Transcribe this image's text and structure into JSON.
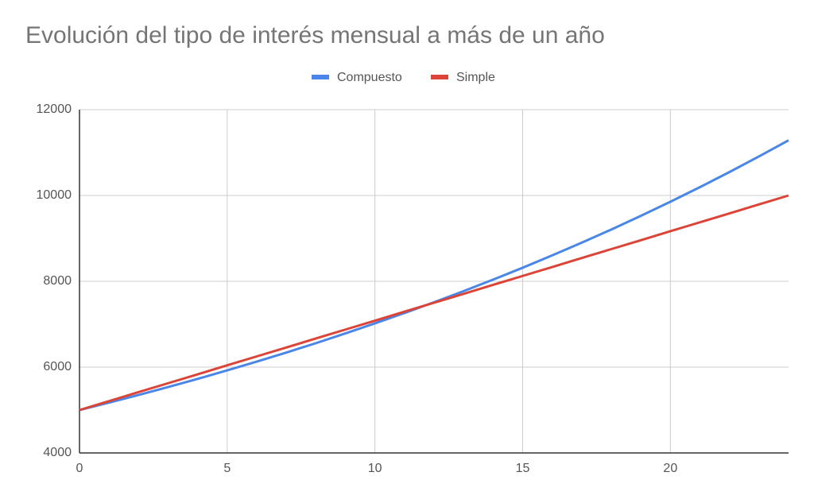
{
  "chart_data": {
    "type": "line",
    "title": "Evolución del tipo de interés mensual a más de un año",
    "x": [
      0,
      1,
      2,
      3,
      4,
      5,
      6,
      7,
      8,
      9,
      10,
      11,
      12,
      13,
      14,
      15,
      16,
      17,
      18,
      19,
      20,
      21,
      22,
      23,
      24
    ],
    "series": [
      {
        "name": "Compuesto",
        "color": "#4a86e8",
        "values": [
          5000,
          5173,
          5351,
          5535,
          5726,
          5924,
          6128,
          6340,
          6558,
          6785,
          7019,
          7261,
          7512,
          7771,
          8039,
          8316,
          8604,
          8900,
          9207,
          9525,
          9854,
          10194,
          10546,
          10910,
          11286
        ]
      },
      {
        "name": "Simple",
        "color": "#db4437",
        "values": [
          5000,
          5208,
          5417,
          5625,
          5833,
          6042,
          6250,
          6458,
          6667,
          6875,
          7083,
          7292,
          7500,
          7708,
          7917,
          8125,
          8333,
          8542,
          8750,
          8958,
          9167,
          9375,
          9583,
          9792,
          10000
        ]
      }
    ],
    "xlim": [
      0,
      24
    ],
    "xticks": [
      0,
      5,
      10,
      15,
      20
    ],
    "ylim": [
      4000,
      12000
    ],
    "yticks": [
      4000,
      6000,
      8000,
      10000,
      12000
    ],
    "grid": true,
    "legend": "top"
  }
}
